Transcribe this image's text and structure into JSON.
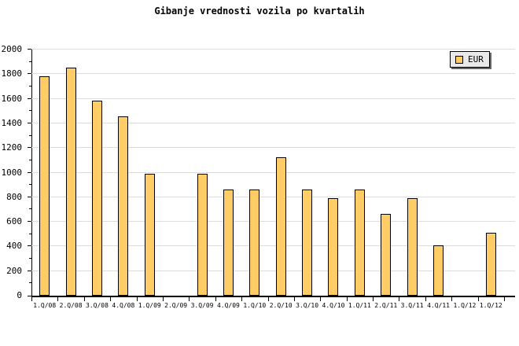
{
  "title": "Gibanje vrednosti vozila po kvartalih",
  "legend": {
    "label": "EUR",
    "swatch_color": "#FFCC66",
    "background": "#E9E9E9",
    "position": "top-right"
  },
  "chart_data": {
    "type": "bar",
    "title": "Gibanje vrednosti vozila po kvartalih",
    "categories": [
      "1.Q/08",
      "2.Q/08",
      "3.Q/08",
      "4.Q/08",
      "1.Q/09",
      "2.Q/09",
      "3.Q/09",
      "4.Q/09",
      "1.Q/10",
      "2.Q/10",
      "3.Q/10",
      "4.Q/10",
      "1.Q/11",
      "2.Q/11",
      "3.Q/11",
      "4.Q/11",
      "1.Q/12",
      "1.Q/12"
    ],
    "series": [
      {
        "name": "EUR",
        "values": [
          1785,
          1850,
          1585,
          1455,
          990,
          0,
          990,
          860,
          860,
          1125,
          860,
          790,
          860,
          665,
          790,
          410,
          0,
          510
        ]
      }
    ],
    "xlabel": "",
    "ylabel": "",
    "ylim": [
      0,
      2000
    ],
    "ytick_major": 200,
    "ytick_minor": 100,
    "grid": "horizontal-major",
    "legend_entries": [
      "EUR"
    ],
    "legend_position": "top-right",
    "bar_color": "#FFCC66",
    "bar_border_color": "#000000",
    "grid_color": "#DCDCDC",
    "axis_color": "#000000",
    "background_color": "#FFFFFF"
  }
}
